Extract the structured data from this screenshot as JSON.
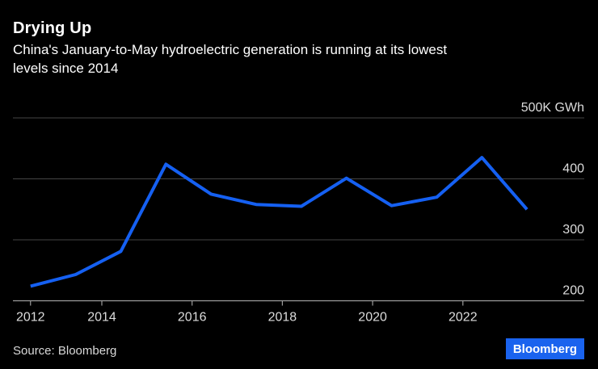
{
  "header": {
    "title": "Drying Up",
    "subtitle_line1": "China's January-to-May hydroelectric generation is running at its lowest",
    "subtitle_line2": "levels since 2014"
  },
  "chart_data": {
    "type": "line",
    "title": "Drying Up",
    "subtitle": "China's January-to-May hydroelectric generation is running at its lowest levels since 2014",
    "series_name": "China January-to-May hydroelectric generation",
    "unit": "K GWh",
    "x": [
      2012,
      2013,
      2014,
      2015,
      2016,
      2017,
      2018,
      2019,
      2020,
      2021,
      2022,
      2023
    ],
    "values": [
      224,
      243,
      281,
      424,
      375,
      358,
      355,
      401,
      356,
      370,
      435,
      350
    ],
    "ylim": [
      200,
      500
    ],
    "yticks": [
      {
        "value": 500,
        "label": "500K GWh"
      },
      {
        "value": 400,
        "label": "400"
      },
      {
        "value": 300,
        "label": "300"
      },
      {
        "value": 200,
        "label": "200"
      }
    ],
    "xticks": [
      {
        "value": 2012,
        "label": "2012"
      },
      {
        "value": 2014,
        "label": "2014"
      },
      {
        "value": 2016,
        "label": "2016"
      },
      {
        "value": 2018,
        "label": "2018"
      },
      {
        "value": 2020,
        "label": "2020"
      },
      {
        "value": 2022,
        "label": "2022"
      }
    ],
    "grid": "horizontal",
    "legend": "none"
  },
  "footer": {
    "source": "Source: Bloomberg",
    "logo_text": "Bloomberg"
  },
  "colors": {
    "background": "#000000",
    "line": "#1560f2",
    "grid": "#454545",
    "axis": "#9c9c9c",
    "tick_label": "#dcdcdc",
    "title": "#ffffff",
    "subtitle": "#ffffff",
    "source": "#d9d9d9",
    "logo_bg": "#1a63ee",
    "logo_text": "#ffffff"
  }
}
